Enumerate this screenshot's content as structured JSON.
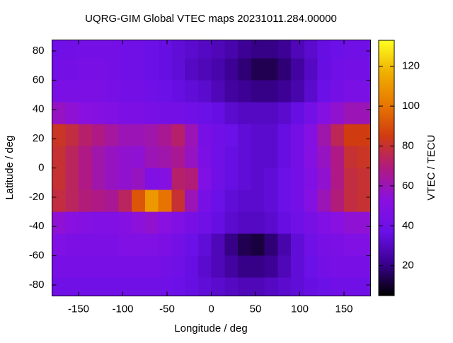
{
  "chart_data": {
    "type": "heatmap",
    "title": "UQRG-GIM Global VTEC maps 20231011.284.00000",
    "x_label": "Longitude / deg",
    "y_label": "Latitude / deg",
    "colorbar_label": "VTEC / TECU",
    "x": [
      -172.5,
      -157.5,
      -142.5,
      -127.5,
      -112.5,
      -97.5,
      -82.5,
      -67.5,
      -52.5,
      -37.5,
      -22.5,
      -7.5,
      7.5,
      22.5,
      37.5,
      52.5,
      67.5,
      82.5,
      97.5,
      112.5,
      127.5,
      142.5,
      157.5,
      172.5
    ],
    "y": [
      82.5,
      67.5,
      52.5,
      37.5,
      22.5,
      7.5,
      -7.5,
      -22.5,
      -37.5,
      -52.5,
      -67.5,
      -82.5
    ],
    "z": [
      [
        40,
        40,
        42,
        42,
        42,
        40,
        40,
        38,
        36,
        34,
        32,
        30,
        28,
        26,
        22,
        20,
        20,
        22,
        28,
        32,
        36,
        38,
        40,
        40
      ],
      [
        42,
        42,
        44,
        44,
        42,
        40,
        40,
        38,
        36,
        34,
        30,
        28,
        26,
        22,
        18,
        14,
        14,
        18,
        24,
        30,
        36,
        40,
        42,
        42
      ],
      [
        45,
        45,
        46,
        46,
        44,
        42,
        42,
        40,
        38,
        36,
        34,
        32,
        28,
        24,
        22,
        20,
        20,
        22,
        26,
        32,
        38,
        42,
        45,
        45
      ],
      [
        58,
        55,
        52,
        50,
        48,
        46,
        46,
        44,
        42,
        42,
        40,
        38,
        36,
        32,
        30,
        30,
        30,
        32,
        36,
        42,
        50,
        56,
        60,
        60
      ],
      [
        82,
        78,
        72,
        68,
        64,
        60,
        60,
        62,
        66,
        72,
        60,
        44,
        40,
        38,
        34,
        32,
        32,
        36,
        42,
        50,
        62,
        75,
        85,
        85
      ],
      [
        80,
        74,
        68,
        62,
        58,
        56,
        55,
        60,
        62,
        66,
        58,
        46,
        40,
        36,
        34,
        32,
        32,
        36,
        42,
        50,
        58,
        68,
        80,
        82
      ],
      [
        80,
        74,
        68,
        62,
        58,
        56,
        58,
        48,
        50,
        72,
        70,
        48,
        40,
        36,
        34,
        32,
        34,
        38,
        42,
        48,
        56,
        68,
        78,
        80
      ],
      [
        78,
        74,
        70,
        68,
        66,
        74,
        92,
        110,
        100,
        80,
        60,
        44,
        38,
        34,
        32,
        32,
        34,
        38,
        42,
        50,
        60,
        70,
        78,
        80
      ],
      [
        55,
        52,
        50,
        48,
        48,
        50,
        54,
        56,
        52,
        48,
        44,
        40,
        36,
        32,
        30,
        30,
        32,
        36,
        40,
        44,
        48,
        52,
        55,
        55
      ],
      [
        48,
        46,
        46,
        46,
        46,
        48,
        48,
        48,
        46,
        42,
        38,
        34,
        28,
        20,
        14,
        12,
        18,
        26,
        34,
        40,
        44,
        46,
        48,
        48
      ],
      [
        44,
        44,
        44,
        44,
        44,
        44,
        44,
        44,
        42,
        40,
        36,
        32,
        28,
        24,
        20,
        20,
        22,
        28,
        34,
        38,
        42,
        44,
        44,
        44
      ],
      [
        40,
        40,
        40,
        40,
        40,
        40,
        40,
        40,
        40,
        38,
        36,
        34,
        32,
        30,
        28,
        28,
        30,
        32,
        34,
        36,
        38,
        40,
        40,
        40
      ]
    ],
    "cell_size": 15,
    "xlim": [
      -180,
      180
    ],
    "ylim": [
      -87.5,
      87.5
    ],
    "zlim": [
      5,
      133
    ],
    "xticks": [
      -150,
      -100,
      -50,
      0,
      50,
      100,
      150
    ],
    "yticks": [
      -80,
      -60,
      -40,
      -20,
      0,
      20,
      40,
      60,
      80
    ],
    "zticks": [
      20,
      40,
      60,
      80,
      100,
      120
    ],
    "colormap": [
      "#000000",
      "#3a0090",
      "#6a10e8",
      "#8a10e0",
      "#b01a80",
      "#d03c10",
      "#e87800",
      "#f0b000",
      "#ffff20"
    ]
  }
}
